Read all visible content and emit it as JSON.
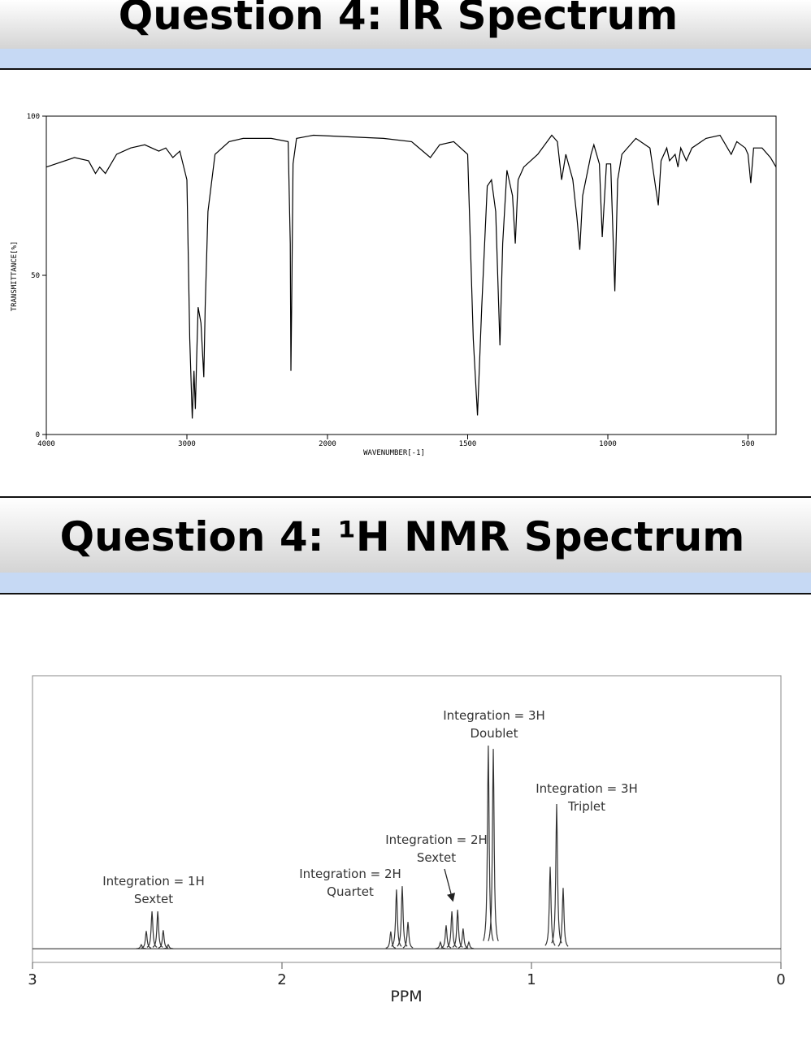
{
  "chart_data": [
    {
      "type": "line",
      "title": "Question 4: IR Spectrum",
      "xlabel": "WAVENUMBER[-1]",
      "ylabel": "TRANSMITTANCE[%]",
      "xlim": [
        4000,
        400
      ],
      "x_scale_change": 2000,
      "xticks": [
        4000,
        3000,
        2000,
        1500,
        1000,
        500
      ],
      "ylim": [
        0,
        100
      ],
      "yticks": [
        0,
        50,
        100
      ],
      "color": "#000000",
      "x": [
        4000,
        3800,
        3700,
        3650,
        3620,
        3580,
        3500,
        3400,
        3300,
        3200,
        3150,
        3100,
        3050,
        3000,
        2980,
        2962,
        2950,
        2940,
        2930,
        2920,
        2900,
        2880,
        2870,
        2850,
        2800,
        2700,
        2600,
        2400,
        2280,
        2265,
        2260,
        2255,
        2245,
        2220,
        2100,
        1800,
        1700,
        1633,
        1600,
        1550,
        1500,
        1480,
        1465,
        1450,
        1430,
        1415,
        1400,
        1385,
        1375,
        1360,
        1340,
        1330,
        1320,
        1300,
        1250,
        1200,
        1180,
        1165,
        1150,
        1125,
        1110,
        1100,
        1090,
        1060,
        1050,
        1030,
        1020,
        1005,
        990,
        975,
        965,
        950,
        900,
        850,
        830,
        820,
        810,
        790,
        780,
        760,
        750,
        740,
        720,
        700,
        650,
        600,
        560,
        540,
        510,
        500,
        490,
        480,
        450,
        420,
        400
      ],
      "values": [
        84,
        87,
        86,
        82,
        84,
        82,
        88,
        90,
        91,
        89,
        90,
        87,
        89,
        80,
        30,
        5,
        20,
        8,
        25,
        40,
        35,
        18,
        40,
        70,
        88,
        92,
        93,
        93,
        92,
        60,
        20,
        40,
        85,
        93,
        94,
        93,
        92,
        87,
        91,
        92,
        88,
        30,
        6,
        40,
        78,
        80,
        70,
        28,
        60,
        83,
        75,
        60,
        80,
        84,
        88,
        94,
        92,
        80,
        88,
        80,
        68,
        58,
        75,
        88,
        91,
        85,
        62,
        85,
        85,
        45,
        80,
        88,
        93,
        90,
        78,
        72,
        86,
        90,
        86,
        88,
        84,
        90,
        86,
        90,
        93,
        94,
        88,
        92,
        90,
        88,
        79,
        90,
        90,
        87,
        84
      ]
    },
    {
      "type": "nmr",
      "title": "Question 4: ¹H NMR Spectrum",
      "xlabel": "PPM",
      "xlim": [
        3,
        0
      ],
      "xticks": [
        3,
        2,
        1,
        0
      ],
      "ylim": [
        -5,
        100
      ],
      "color": "#333333",
      "x": [
        2.564,
        2.544,
        2.521,
        2.498,
        2.476,
        2.456,
        1.564,
        1.541,
        1.518,
        1.495,
        1.365,
        1.342,
        1.319,
        1.296,
        1.274,
        1.251,
        1.173,
        1.153,
        0.925,
        0.899,
        0.873
      ],
      "values": [
        1.5,
        6.5,
        13.7,
        13.7,
        6.8,
        1.5,
        6.3,
        21.7,
        22.9,
        9.8,
        2.4,
        8.6,
        13.7,
        14.3,
        7.4,
        2.4,
        74.4,
        73.2,
        30,
        53,
        22.3
      ],
      "annotations": [
        [
          "Integration = 1H",
          "Sextet"
        ],
        [
          "Integration = 2H",
          "Quartet"
        ],
        [
          "Integration = 2H",
          "Sextet"
        ],
        [
          "Integration = 3H",
          "Doublet"
        ],
        [
          "Integration = 3H",
          "Triplet"
        ]
      ]
    }
  ]
}
